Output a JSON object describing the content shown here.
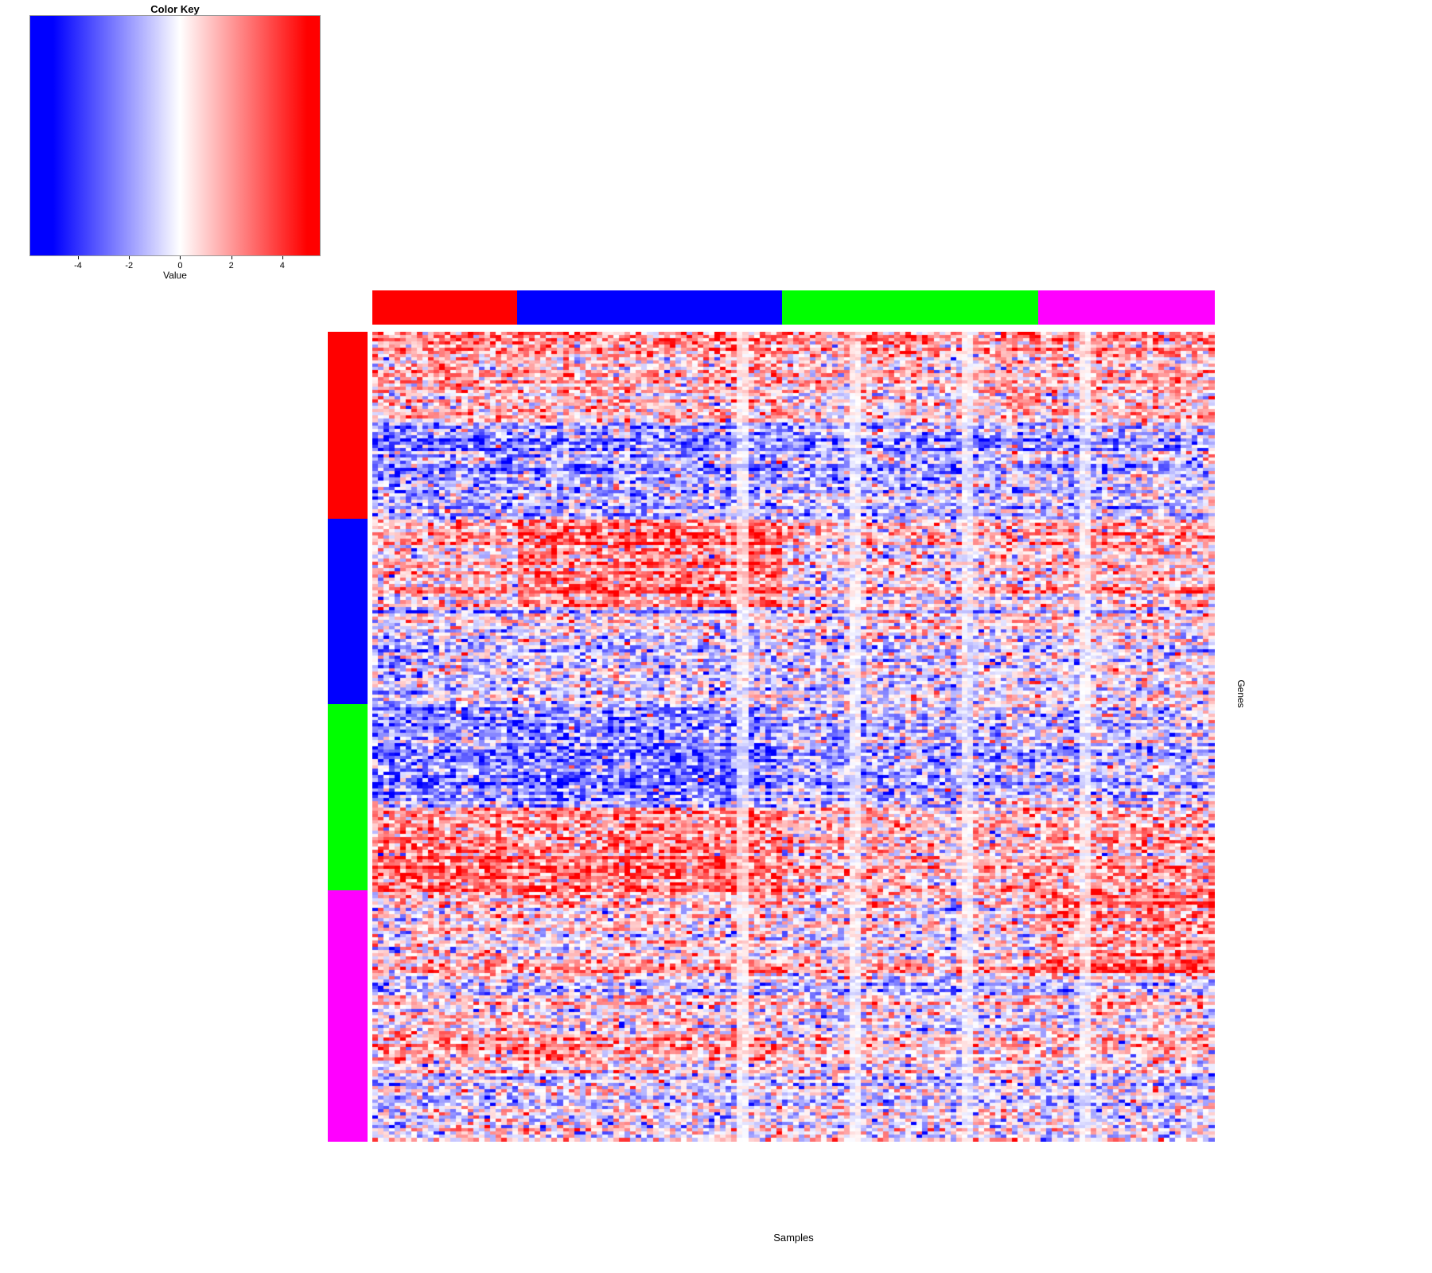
{
  "chart_data": {
    "type": "heatmap",
    "title": "",
    "xlabel": "Samples",
    "ylabel": "Genes",
    "value_range": [
      -5,
      5
    ],
    "color_key": {
      "title": "Color Key",
      "axis_label": "Value",
      "ticks": [
        -4,
        -2,
        0,
        2,
        4
      ],
      "axis_range": [
        -5.9,
        5.5
      ],
      "low_color": "#0000FF",
      "mid_color": "#FFFFFF",
      "high_color": "#FF0000"
    },
    "legend_position": "top-left",
    "grid": {
      "rows": 250,
      "cols": 150,
      "seed": 11,
      "cell_noise_sd": 1.8,
      "row_noise_sd": 0.8,
      "col_noise_sd": 0.35,
      "light_scale": 0.3
    },
    "col_groups": [
      {
        "name": "red",
        "color": "#FF0000",
        "frac": 0.172
      },
      {
        "name": "blue",
        "color": "#0000FF",
        "frac": 0.314
      },
      {
        "name": "green",
        "color": "#00FF00",
        "frac": 0.304
      },
      {
        "name": "magenta",
        "color": "#FF00FF",
        "frac": 0.21
      }
    ],
    "row_groups": [
      {
        "name": "red",
        "color": "#FF0000",
        "frac": 0.231
      },
      {
        "name": "blue",
        "color": "#0000FF",
        "frac": 0.229
      },
      {
        "name": "green",
        "color": "#00FF00",
        "frac": 0.23
      },
      {
        "name": "magenta",
        "color": "#FF00FF",
        "frac": 0.31
      }
    ],
    "blocks": [
      {
        "row_group": 0,
        "row_span": [
          0.0,
          0.48
        ],
        "means": [
          1.6,
          1.5,
          1.1,
          1.4
        ]
      },
      {
        "row_group": 0,
        "row_span": [
          0.48,
          1.0
        ],
        "means": [
          -1.6,
          -1.5,
          -1.2,
          -1.0
        ]
      },
      {
        "row_group": 1,
        "row_span": [
          0.0,
          0.47
        ],
        "means": [
          1.0,
          2.7,
          0.4,
          1.2
        ]
      },
      {
        "row_group": 1,
        "row_span": [
          0.47,
          1.0
        ],
        "means": [
          -0.8,
          -0.7,
          -0.5,
          -0.2
        ]
      },
      {
        "row_group": 2,
        "row_span": [
          0.0,
          0.55
        ],
        "means": [
          -2.2,
          -2.2,
          -1.2,
          -0.9
        ]
      },
      {
        "row_group": 2,
        "row_span": [
          0.55,
          0.82
        ],
        "means": [
          1.8,
          1.8,
          0.6,
          1.0
        ]
      },
      {
        "row_group": 2,
        "row_span": [
          0.82,
          1.0
        ],
        "means": [
          3.0,
          3.0,
          1.0,
          1.8
        ]
      },
      {
        "row_group": 3,
        "row_span": [
          0.0,
          0.33
        ],
        "means": [
          0.7,
          0.7,
          0.2,
          2.2
        ]
      },
      {
        "row_group": 3,
        "row_span": [
          0.33,
          0.5
        ],
        "means": [
          0.2,
          0.3,
          -0.2,
          0.3
        ]
      },
      {
        "row_group": 3,
        "row_span": [
          0.5,
          0.68
        ],
        "means": [
          1.5,
          1.5,
          0.4,
          0.6
        ]
      },
      {
        "row_group": 3,
        "row_span": [
          0.68,
          1.0
        ],
        "means": [
          -0.4,
          -0.2,
          -0.5,
          -0.7
        ]
      }
    ],
    "light_col_fracs": [
      0.43,
      0.57,
      0.7,
      0.84
    ]
  }
}
